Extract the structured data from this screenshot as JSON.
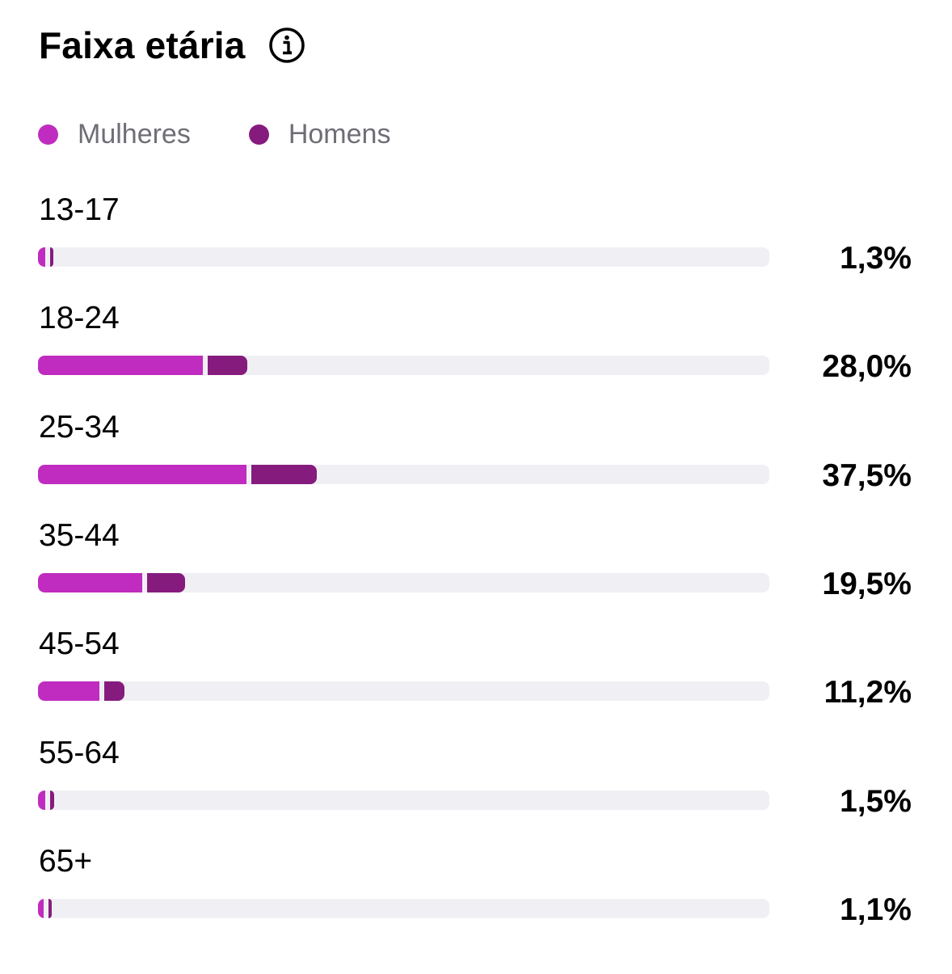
{
  "header": {
    "title": "Faixa etária",
    "info_icon": "info-icon"
  },
  "legend": {
    "items": [
      {
        "label": "Mulheres",
        "color": "#c02cbf"
      },
      {
        "label": "Homens",
        "color": "#861b7e"
      }
    ]
  },
  "chart_data": {
    "type": "bar",
    "stacked": true,
    "orientation": "horizontal",
    "title": "Faixa etária",
    "categories": [
      "13-17",
      "18-24",
      "25-34",
      "35-44",
      "45-54",
      "55-64",
      "65+"
    ],
    "totals": [
      1.3,
      28.0,
      37.5,
      19.5,
      11.2,
      1.5,
      1.1
    ],
    "total_labels": [
      "1,3%",
      "28,0%",
      "37,5%",
      "19,5%",
      "11,2%",
      "1,5%",
      "1,1%"
    ],
    "series": [
      {
        "name": "Mulheres",
        "color": "#c02cbf",
        "values": [
          1.0,
          22.5,
          28.5,
          14.2,
          8.4,
          1.0,
          0.8
        ]
      },
      {
        "name": "Homens",
        "color": "#861b7e",
        "values": [
          0.3,
          5.5,
          9.0,
          5.3,
          2.8,
          0.5,
          0.3
        ]
      }
    ],
    "xlim": [
      0,
      100
    ],
    "track_color": "#f0f0f4",
    "legend_position": "top-left",
    "grid": false
  }
}
